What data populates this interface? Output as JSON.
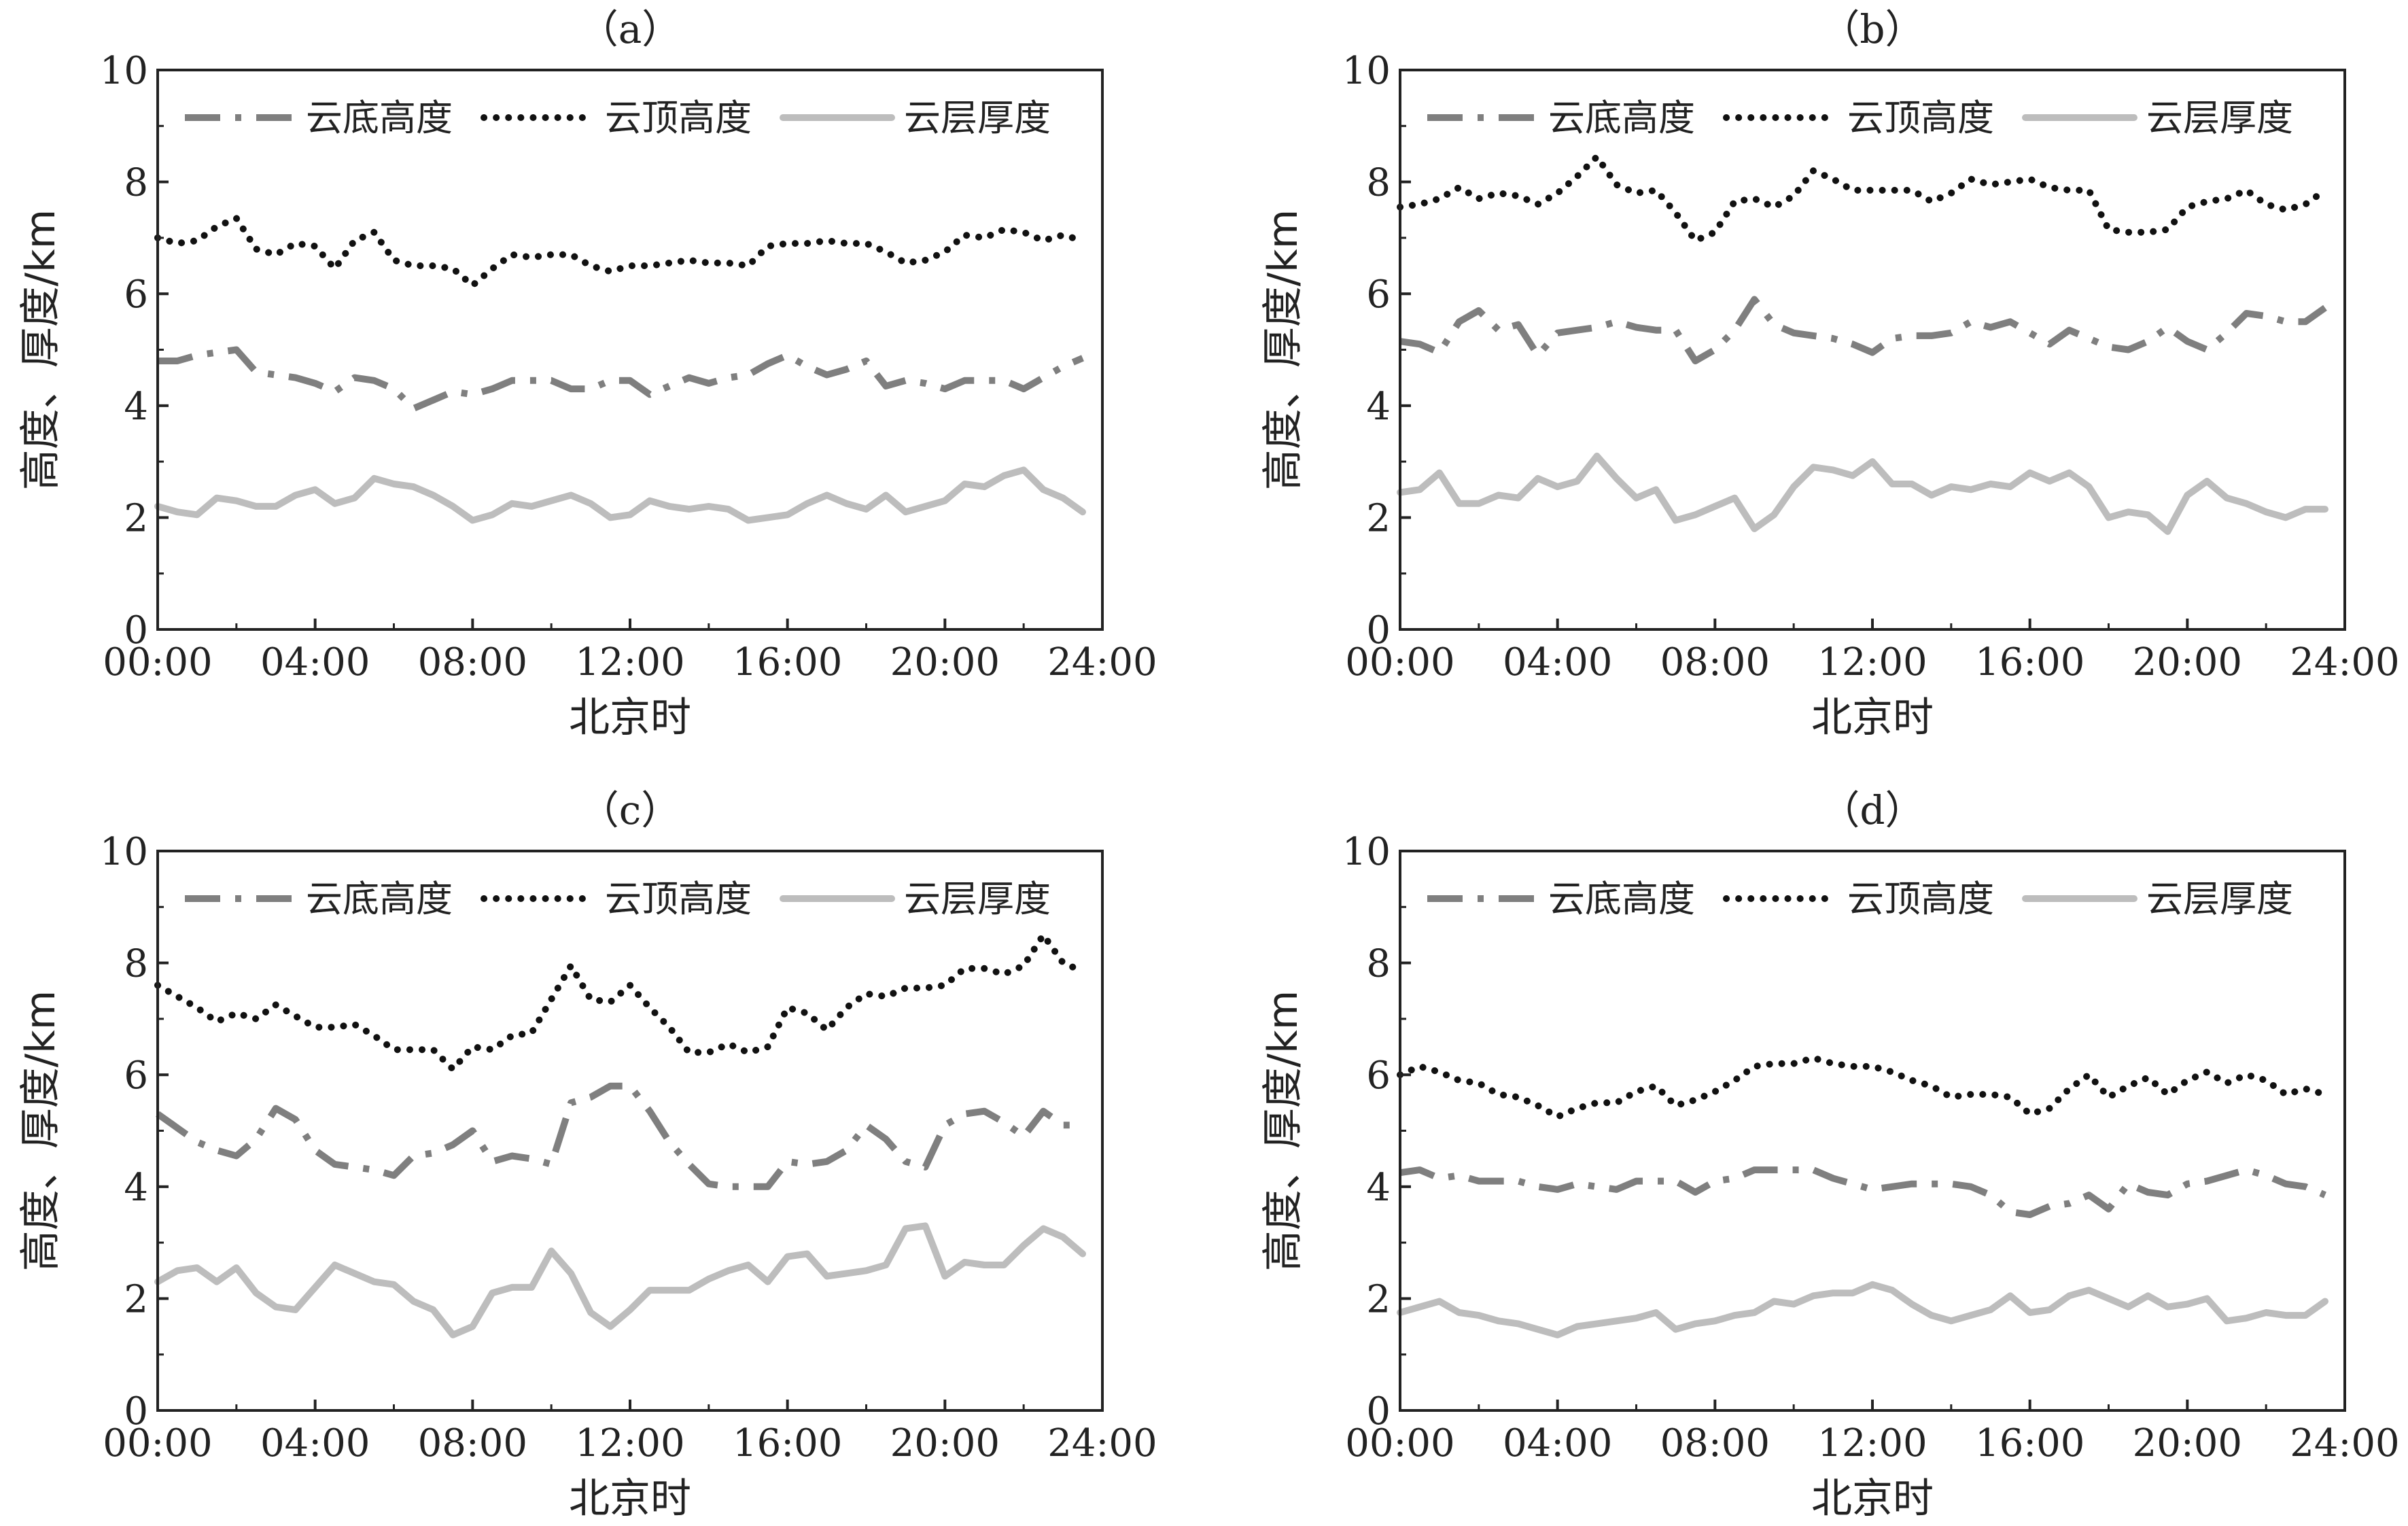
{
  "chart_data": [
    {
      "type": "line",
      "title": "（a）",
      "xlabel": "北京时",
      "ylabel": "高度、厚度/km",
      "ylim": [
        0,
        10
      ],
      "xlim": [
        "00:00",
        "24:00"
      ],
      "x_ticks": [
        "00:00",
        "04:00",
        "08:00",
        "12:00",
        "16:00",
        "20:00",
        "24:00"
      ],
      "y_ticks": [
        "0",
        "2",
        "4",
        "6",
        "8",
        "10"
      ],
      "legend_position": "top",
      "grid": false,
      "x": [
        "00:00",
        "00:30",
        "01:00",
        "01:30",
        "02:00",
        "02:30",
        "03:00",
        "03:30",
        "04:00",
        "04:30",
        "05:00",
        "05:30",
        "06:00",
        "06:30",
        "07:00",
        "07:30",
        "08:00",
        "08:30",
        "09:00",
        "09:30",
        "10:00",
        "10:30",
        "11:00",
        "11:30",
        "12:00",
        "12:30",
        "13:00",
        "13:30",
        "14:00",
        "14:30",
        "15:00",
        "15:30",
        "16:00",
        "16:30",
        "17:00",
        "17:30",
        "18:00",
        "18:30",
        "19:00",
        "19:30",
        "20:00",
        "20:30",
        "21:00",
        "21:30",
        "22:00",
        "22:30",
        "23:00",
        "23:30"
      ],
      "series": [
        {
          "name": "云底高度",
          "color": "#7f7f7f",
          "style": "dash-dot",
          "values": [
            4.8,
            4.8,
            4.9,
            4.95,
            5.0,
            4.6,
            4.55,
            4.5,
            4.4,
            4.25,
            4.5,
            4.45,
            4.3,
            3.95,
            4.1,
            4.25,
            4.2,
            4.3,
            4.45,
            4.45,
            4.45,
            4.3,
            4.3,
            4.45,
            4.45,
            4.2,
            4.35,
            4.5,
            4.4,
            4.5,
            4.55,
            4.75,
            4.9,
            4.7,
            4.55,
            4.65,
            4.8,
            4.35,
            4.45,
            4.4,
            4.3,
            4.45,
            4.45,
            4.45,
            4.3,
            4.5,
            4.7,
            4.85
          ]
        },
        {
          "name": "云顶高度",
          "color": "#111111",
          "style": "dotted",
          "values": [
            7.0,
            6.9,
            6.95,
            7.2,
            7.35,
            6.8,
            6.7,
            6.9,
            6.85,
            6.45,
            6.95,
            7.1,
            6.6,
            6.5,
            6.5,
            6.45,
            6.15,
            6.45,
            6.7,
            6.65,
            6.7,
            6.7,
            6.5,
            6.4,
            6.5,
            6.5,
            6.55,
            6.6,
            6.55,
            6.55,
            6.5,
            6.85,
            6.9,
            6.9,
            6.95,
            6.9,
            6.9,
            6.75,
            6.55,
            6.6,
            6.75,
            7.05,
            7.0,
            7.15,
            7.1,
            6.95,
            7.05,
            6.95
          ]
        },
        {
          "name": "云层厚度",
          "color": "#bdbdbd",
          "style": "solid",
          "values": [
            2.2,
            2.1,
            2.05,
            2.35,
            2.3,
            2.2,
            2.2,
            2.4,
            2.5,
            2.25,
            2.35,
            2.7,
            2.6,
            2.55,
            2.4,
            2.2,
            1.95,
            2.05,
            2.25,
            2.2,
            2.3,
            2.4,
            2.25,
            2.0,
            2.05,
            2.3,
            2.2,
            2.15,
            2.2,
            2.15,
            1.95,
            2.0,
            2.05,
            2.25,
            2.4,
            2.25,
            2.15,
            2.4,
            2.1,
            2.2,
            2.3,
            2.6,
            2.55,
            2.75,
            2.85,
            2.5,
            2.35,
            2.1
          ]
        }
      ]
    },
    {
      "type": "line",
      "title": "（b）",
      "xlabel": "北京时",
      "ylabel": "高度、厚度/km",
      "ylim": [
        0,
        10
      ],
      "xlim": [
        "00:00",
        "24:00"
      ],
      "x_ticks": [
        "00:00",
        "04:00",
        "08:00",
        "12:00",
        "16:00",
        "20:00",
        "24:00"
      ],
      "y_ticks": [
        "0",
        "2",
        "4",
        "6",
        "8",
        "10"
      ],
      "legend_position": "top",
      "grid": false,
      "x": [
        "00:00",
        "00:30",
        "01:00",
        "01:30",
        "02:00",
        "02:30",
        "03:00",
        "03:30",
        "04:00",
        "04:30",
        "05:00",
        "05:30",
        "06:00",
        "06:30",
        "07:00",
        "07:30",
        "08:00",
        "08:30",
        "09:00",
        "09:30",
        "10:00",
        "10:30",
        "11:00",
        "11:30",
        "12:00",
        "12:30",
        "13:00",
        "13:30",
        "14:00",
        "14:30",
        "15:00",
        "15:30",
        "16:00",
        "16:30",
        "17:00",
        "17:30",
        "18:00",
        "18:30",
        "19:00",
        "19:30",
        "20:00",
        "20:30",
        "21:00",
        "21:30",
        "22:00",
        "22:30",
        "23:00",
        "23:30"
      ],
      "series": [
        {
          "name": "云底高度",
          "color": "#7f7f7f",
          "style": "dash-dot",
          "values": [
            5.15,
            5.1,
            4.95,
            5.5,
            5.7,
            5.35,
            5.45,
            4.9,
            5.3,
            5.35,
            5.4,
            5.5,
            5.4,
            5.35,
            5.35,
            4.8,
            5.0,
            5.35,
            5.9,
            5.45,
            5.3,
            5.25,
            5.2,
            5.1,
            4.95,
            5.2,
            5.25,
            5.25,
            5.3,
            5.5,
            5.4,
            5.5,
            5.3,
            5.1,
            5.35,
            5.2,
            5.05,
            5.0,
            5.15,
            5.4,
            5.15,
            5.0,
            5.3,
            5.65,
            5.6,
            5.5,
            5.5,
            5.75
          ]
        },
        {
          "name": "云顶高度",
          "color": "#111111",
          "style": "dotted",
          "values": [
            7.55,
            7.6,
            7.7,
            7.9,
            7.7,
            7.8,
            7.75,
            7.6,
            7.8,
            8.1,
            8.45,
            7.95,
            7.8,
            7.85,
            7.45,
            6.95,
            7.1,
            7.65,
            7.7,
            7.55,
            7.75,
            8.2,
            8.05,
            7.85,
            7.85,
            7.85,
            7.85,
            7.65,
            7.8,
            8.05,
            7.95,
            8.0,
            8.05,
            7.9,
            7.85,
            7.85,
            7.15,
            7.1,
            7.1,
            7.15,
            7.55,
            7.65,
            7.7,
            7.85,
            7.6,
            7.5,
            7.6,
            7.85
          ]
        },
        {
          "name": "云层厚度",
          "color": "#bdbdbd",
          "style": "solid",
          "values": [
            2.45,
            2.5,
            2.8,
            2.25,
            2.25,
            2.4,
            2.35,
            2.7,
            2.55,
            2.65,
            3.1,
            2.7,
            2.35,
            2.5,
            1.95,
            2.05,
            2.2,
            2.35,
            1.8,
            2.05,
            2.55,
            2.9,
            2.85,
            2.75,
            3.0,
            2.6,
            2.6,
            2.4,
            2.55,
            2.5,
            2.6,
            2.55,
            2.8,
            2.65,
            2.8,
            2.55,
            2.0,
            2.1,
            2.05,
            1.75,
            2.4,
            2.65,
            2.35,
            2.25,
            2.1,
            2.0,
            2.15,
            2.15
          ]
        }
      ]
    },
    {
      "type": "line",
      "title": "（c）",
      "xlabel": "北京时",
      "ylabel": "高度、厚度/km",
      "ylim": [
        0,
        10
      ],
      "xlim": [
        "00:00",
        "24:00"
      ],
      "x_ticks": [
        "00:00",
        "04:00",
        "08:00",
        "12:00",
        "16:00",
        "20:00",
        "24:00"
      ],
      "y_ticks": [
        "0",
        "2",
        "4",
        "6",
        "8",
        "10"
      ],
      "legend_position": "top",
      "grid": false,
      "x": [
        "00:00",
        "00:30",
        "01:00",
        "01:30",
        "02:00",
        "02:30",
        "03:00",
        "03:30",
        "04:00",
        "04:30",
        "05:00",
        "05:30",
        "06:00",
        "06:30",
        "07:00",
        "07:30",
        "08:00",
        "08:30",
        "09:00",
        "09:30",
        "10:00",
        "10:30",
        "11:00",
        "11:30",
        "12:00",
        "12:30",
        "13:00",
        "13:30",
        "14:00",
        "14:30",
        "15:00",
        "15:30",
        "16:00",
        "16:30",
        "17:00",
        "17:30",
        "18:00",
        "18:30",
        "19:00",
        "19:30",
        "20:00",
        "20:30",
        "21:00",
        "21:30",
        "22:00",
        "22:30",
        "23:00",
        "23:30"
      ],
      "series": [
        {
          "name": "云底高度",
          "color": "#7f7f7f",
          "style": "dash-dot",
          "values": [
            5.3,
            5.05,
            4.8,
            4.65,
            4.55,
            4.85,
            5.4,
            5.2,
            4.65,
            4.4,
            4.35,
            4.3,
            4.2,
            4.55,
            4.6,
            4.75,
            5.0,
            4.45,
            4.55,
            4.5,
            4.4,
            5.5,
            5.6,
            5.8,
            5.8,
            5.35,
            4.8,
            4.4,
            4.05,
            4.0,
            4.0,
            4.0,
            4.45,
            4.4,
            4.45,
            4.65,
            5.1,
            4.85,
            4.45,
            4.35,
            5.1,
            5.3,
            5.35,
            5.15,
            4.9,
            5.35,
            5.1,
            5.1
          ]
        },
        {
          "name": "云顶高度",
          "color": "#111111",
          "style": "dotted",
          "values": [
            7.6,
            7.4,
            7.2,
            6.95,
            7.1,
            7.0,
            7.25,
            7.05,
            6.85,
            6.85,
            6.9,
            6.7,
            6.45,
            6.45,
            6.45,
            6.1,
            6.5,
            6.45,
            6.7,
            6.75,
            7.35,
            7.95,
            7.35,
            7.3,
            7.6,
            7.2,
            6.85,
            6.4,
            6.4,
            6.55,
            6.4,
            6.5,
            7.2,
            7.1,
            6.8,
            7.2,
            7.45,
            7.4,
            7.55,
            7.55,
            7.6,
            7.9,
            7.9,
            7.8,
            7.95,
            8.5,
            8.0,
            7.85
          ]
        },
        {
          "name": "云层厚度",
          "color": "#bdbdbd",
          "style": "solid",
          "values": [
            2.3,
            2.5,
            2.55,
            2.3,
            2.55,
            2.1,
            1.85,
            1.8,
            2.2,
            2.6,
            2.45,
            2.3,
            2.25,
            1.95,
            1.8,
            1.35,
            1.5,
            2.1,
            2.2,
            2.2,
            2.85,
            2.45,
            1.75,
            1.5,
            1.8,
            2.15,
            2.15,
            2.15,
            2.35,
            2.5,
            2.6,
            2.3,
            2.75,
            2.8,
            2.4,
            2.45,
            2.5,
            2.6,
            3.25,
            3.3,
            2.4,
            2.65,
            2.6,
            2.6,
            2.95,
            3.25,
            3.1,
            2.8
          ]
        }
      ]
    },
    {
      "type": "line",
      "title": "（d）",
      "xlabel": "北京时",
      "ylabel": "高度、厚度/km",
      "ylim": [
        0,
        10
      ],
      "xlim": [
        "00:00",
        "24:00"
      ],
      "x_ticks": [
        "00:00",
        "04:00",
        "08:00",
        "12:00",
        "16:00",
        "20:00",
        "24:00"
      ],
      "y_ticks": [
        "0",
        "2",
        "4",
        "6",
        "8",
        "10"
      ],
      "legend_position": "top",
      "grid": false,
      "x": [
        "00:00",
        "00:30",
        "01:00",
        "01:30",
        "02:00",
        "02:30",
        "03:00",
        "03:30",
        "04:00",
        "04:30",
        "05:00",
        "05:30",
        "06:00",
        "06:30",
        "07:00",
        "07:30",
        "08:00",
        "08:30",
        "09:00",
        "09:30",
        "10:00",
        "10:30",
        "11:00",
        "11:30",
        "12:00",
        "12:30",
        "13:00",
        "13:30",
        "14:00",
        "14:30",
        "15:00",
        "15:30",
        "16:00",
        "16:30",
        "17:00",
        "17:30",
        "18:00",
        "18:30",
        "19:00",
        "19:30",
        "20:00",
        "20:30",
        "21:00",
        "21:30",
        "22:00",
        "22:30",
        "23:00",
        "23:30"
      ],
      "series": [
        {
          "name": "云底高度",
          "color": "#7f7f7f",
          "style": "dash-dot",
          "values": [
            4.25,
            4.3,
            4.15,
            4.2,
            4.1,
            4.1,
            4.1,
            4.0,
            3.95,
            4.05,
            4.0,
            3.95,
            4.1,
            4.1,
            4.1,
            3.9,
            4.1,
            4.15,
            4.3,
            4.3,
            4.3,
            4.3,
            4.15,
            4.05,
            3.95,
            4.0,
            4.05,
            4.05,
            4.05,
            4.0,
            3.85,
            3.55,
            3.5,
            3.65,
            3.7,
            3.85,
            3.6,
            4.05,
            3.9,
            3.85,
            4.05,
            4.1,
            4.2,
            4.3,
            4.2,
            4.05,
            4.0,
            3.85
          ]
        },
        {
          "name": "云顶高度",
          "color": "#111111",
          "style": "dotted",
          "values": [
            6.0,
            6.15,
            6.05,
            5.9,
            5.85,
            5.65,
            5.6,
            5.45,
            5.25,
            5.4,
            5.5,
            5.5,
            5.7,
            5.8,
            5.45,
            5.55,
            5.7,
            5.9,
            6.15,
            6.2,
            6.2,
            6.3,
            6.2,
            6.15,
            6.15,
            6.05,
            5.9,
            5.8,
            5.6,
            5.65,
            5.65,
            5.6,
            5.3,
            5.4,
            5.75,
            6.0,
            5.6,
            5.8,
            5.95,
            5.65,
            5.9,
            6.05,
            5.85,
            6.0,
            5.9,
            5.65,
            5.75,
            5.65
          ]
        },
        {
          "name": "云层厚度",
          "color": "#bdbdbd",
          "style": "solid",
          "values": [
            1.75,
            1.85,
            1.95,
            1.75,
            1.7,
            1.6,
            1.55,
            1.45,
            1.35,
            1.5,
            1.55,
            1.6,
            1.65,
            1.75,
            1.45,
            1.55,
            1.6,
            1.7,
            1.75,
            1.95,
            1.9,
            2.05,
            2.1,
            2.1,
            2.25,
            2.15,
            1.9,
            1.7,
            1.6,
            1.7,
            1.8,
            2.05,
            1.75,
            1.8,
            2.05,
            2.15,
            2.0,
            1.85,
            2.05,
            1.85,
            1.9,
            2.0,
            1.6,
            1.65,
            1.75,
            1.7,
            1.7,
            1.95
          ]
        }
      ]
    }
  ]
}
